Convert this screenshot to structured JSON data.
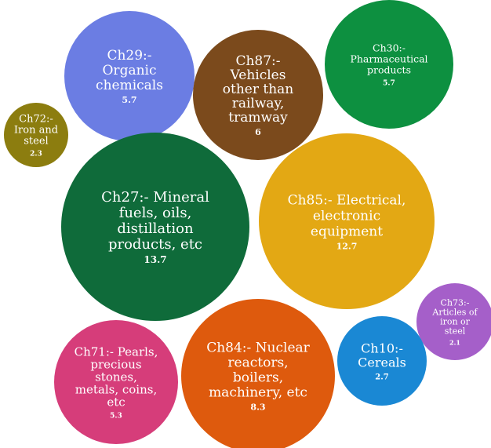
{
  "chart_data": {
    "type": "bubble",
    "title": "",
    "series": [
      {
        "label_lines": [
          "Ch29:-",
          "Organic",
          "chemicals"
        ],
        "value": 5.7,
        "value_label": "5.7",
        "color": "#6b7de3"
      },
      {
        "label_lines": [
          "Ch87:-",
          "Vehicles",
          "other than",
          "railway,",
          "tramway"
        ],
        "value": 6,
        "value_label": "6",
        "color": "#7b4a1c"
      },
      {
        "label_lines": [
          "Ch30:-",
          "Pharmaceutical",
          "products"
        ],
        "value": 5.7,
        "value_label": "5.7",
        "color": "#0d9040"
      },
      {
        "label_lines": [
          "Ch72:-",
          "Iron and",
          "steel"
        ],
        "value": 2.3,
        "value_label": "2.3",
        "color": "#8c7d0f"
      },
      {
        "label_lines": [
          "Ch27:- Mineral",
          "fuels, oils,",
          "distillation",
          "products, etc"
        ],
        "value": 13.7,
        "value_label": "13.7",
        "color": "#0f6b3a"
      },
      {
        "label_lines": [
          "Ch85:- Electrical,",
          "electronic",
          "equipment"
        ],
        "value": 12.7,
        "value_label": "12.7",
        "color": "#e3a814"
      },
      {
        "label_lines": [
          "Ch73:-",
          "Articles of",
          "iron or",
          "steel"
        ],
        "value": 2.1,
        "value_label": "2.1",
        "color": "#a55fc9"
      },
      {
        "label_lines": [
          "Ch71:- Pearls,",
          "precious",
          "stones,",
          "metals, coins,",
          "etc"
        ],
        "value": 5.3,
        "value_label": "5.3",
        "color": "#d63d7a"
      },
      {
        "label_lines": [
          "Ch84:- Nuclear",
          "reactors,",
          "boilers,",
          "machinery, etc"
        ],
        "value": 8.3,
        "value_label": "8.3",
        "color": "#de5a0d"
      },
      {
        "label_lines": [
          "Ch10:-",
          "Cereals"
        ],
        "value": 2.7,
        "value_label": "2.7",
        "color": "#1a88d4"
      }
    ]
  }
}
